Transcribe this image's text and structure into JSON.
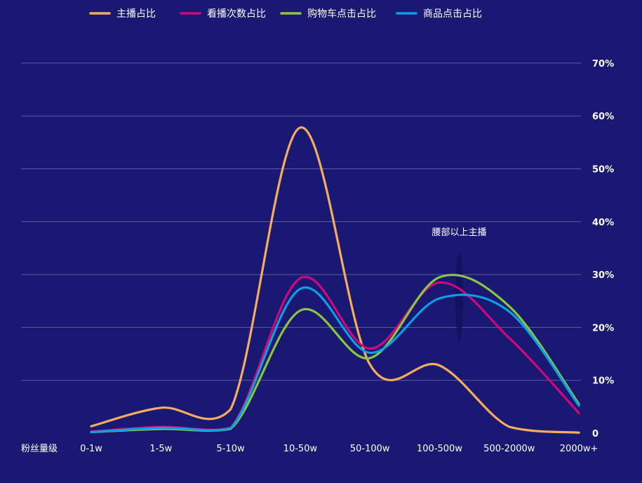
{
  "chart_data": {
    "type": "line",
    "smooth": true,
    "categories": [
      "0-1w",
      "1-5w",
      "5-10w",
      "10-50w",
      "50-100w",
      "100-500w",
      "500-2000w",
      "2000w+"
    ],
    "xlabel": "粉丝量级",
    "ylabel": "",
    "ylim": [
      0,
      70
    ],
    "yticks": [
      0,
      10,
      20,
      30,
      40,
      50,
      60,
      70
    ],
    "ytick_labels": [
      "0",
      "10%",
      "20%",
      "30%",
      "40%",
      "50%",
      "60%",
      "70%"
    ],
    "y_axis_position": "right",
    "grid": true,
    "legend_position": "top-left",
    "series": [
      {
        "name": "主播占比",
        "color": "#f7ab5e",
        "values": [
          1.3,
          4.8,
          4.5,
          57.8,
          13.0,
          12.8,
          1.2,
          0.1
        ]
      },
      {
        "name": "看播次数占比",
        "color": "#d0087f",
        "values": [
          0.3,
          1.2,
          1.0,
          29.3,
          16.0,
          28.5,
          18.0,
          3.8
        ]
      },
      {
        "name": "购物车点击占比",
        "color": "#8cc63e",
        "values": [
          0.2,
          0.8,
          0.8,
          23.2,
          14.2,
          29.5,
          24.0,
          5.5
        ]
      },
      {
        "name": "商品点击占比",
        "color": "#0d9ee3",
        "values": [
          0.2,
          1.0,
          0.9,
          27.3,
          15.2,
          25.5,
          23.0,
          5.2
        ]
      }
    ],
    "annotations": [
      {
        "text": "腰部以上主播",
        "x_category": "100-500w",
        "y": 26,
        "x_span": [
          "50-100w",
          "500-2000w"
        ]
      }
    ],
    "highlight_color": "#13115e"
  }
}
